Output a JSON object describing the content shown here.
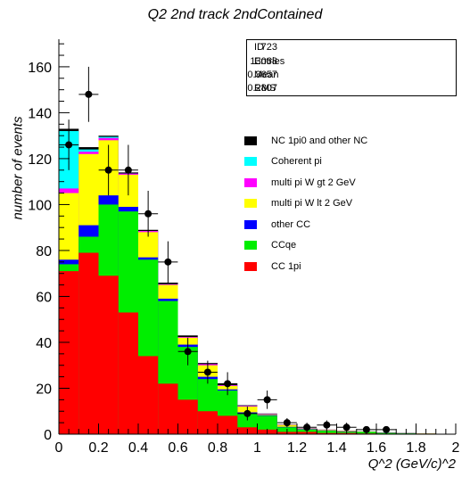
{
  "chart_data": {
    "type": "bar",
    "title": "Q2 2nd track 2ndContained",
    "xlabel": "Q^2 (GeV/c)^2",
    "ylabel": "number of events",
    "xlim": [
      0,
      2
    ],
    "ylim": [
      0,
      172
    ],
    "bin_edges": [
      0,
      0.1,
      0.2,
      0.3,
      0.4,
      0.5,
      0.6,
      0.7,
      0.8,
      0.9,
      1.0,
      1.1,
      1.2,
      1.3,
      1.4,
      1.5,
      1.6,
      1.7,
      1.8,
      1.9,
      2.0
    ],
    "x_ticks": [
      0,
      0.2,
      0.4,
      0.6,
      0.8,
      1,
      1.2,
      1.4,
      1.6,
      1.8,
      2
    ],
    "x_tick_labels": [
      "0",
      "0.2",
      "0.4",
      "0.6",
      "0.8",
      "1",
      "1.2",
      "1.4",
      "1.6",
      "1.8",
      "2"
    ],
    "y_ticks": [
      0,
      20,
      40,
      60,
      80,
      100,
      120,
      140,
      160
    ],
    "stacked_cumulative": [
      {
        "name": "CC 1pi",
        "color": "#ff0000",
        "values": [
          71,
          79,
          69,
          53,
          34,
          22,
          15,
          10,
          8,
          3,
          2,
          1,
          1,
          0.5,
          0.5,
          0.3,
          0.2,
          0.1,
          0.1,
          0
        ]
      },
      {
        "name": "CCqe",
        "color": "#00ee00",
        "values": [
          74,
          86,
          100,
          97,
          76,
          58,
          38,
          24,
          19,
          9,
          8,
          3,
          2,
          1.5,
          1,
          1,
          0.5,
          0.3,
          0.2,
          0.1
        ]
      },
      {
        "name": "other CC",
        "color": "#0000ff",
        "values": [
          76,
          91,
          104,
          99,
          77,
          59,
          39,
          25,
          19.5,
          9.5,
          8.3,
          3.2,
          2.2,
          1.6,
          1.1,
          1,
          0.6,
          0.3,
          0.2,
          0.1
        ]
      },
      {
        "name": "multi pi W lt 2 GeV",
        "color": "#ffff00",
        "values": [
          105,
          122,
          128,
          113,
          88,
          65,
          42,
          30,
          21,
          12,
          8.6,
          4,
          2.4,
          1.8,
          1.3,
          1.1,
          0.7,
          0.4,
          0.3,
          0.1
        ]
      },
      {
        "name": "multi pi W gt 2 GeV",
        "color": "#ff00ff",
        "values": [
          107,
          123,
          129,
          113.5,
          88.5,
          65.3,
          42.3,
          30.5,
          21.3,
          12.3,
          8.8,
          4.1,
          2.5,
          1.9,
          1.4,
          1.1,
          0.7,
          0.4,
          0.3,
          0.1
        ]
      },
      {
        "name": "Coherent pi",
        "color": "#00ffff",
        "values": [
          132,
          124,
          129.5,
          113.5,
          88.5,
          65.3,
          42.3,
          30.5,
          21.3,
          12.3,
          8.8,
          4.1,
          2.5,
          1.9,
          1.4,
          1.1,
          0.7,
          0.4,
          0.3,
          0.1
        ]
      },
      {
        "name": "NC 1pi0 and other NC",
        "color": "#000000",
        "values": [
          133,
          125,
          130,
          114,
          89,
          66,
          43,
          31,
          22,
          12.6,
          9,
          4.2,
          2.6,
          2,
          1.5,
          1.2,
          0.8,
          0.5,
          0.35,
          0.15
        ]
      }
    ],
    "data_points": {
      "x": [
        0.05,
        0.15,
        0.25,
        0.35,
        0.45,
        0.55,
        0.65,
        0.75,
        0.85,
        0.95,
        1.05,
        1.15,
        1.25,
        1.35,
        1.45,
        1.55,
        1.65
      ],
      "y": [
        126,
        148,
        115,
        115,
        96,
        75,
        36,
        27,
        22,
        9,
        15,
        5,
        3,
        4,
        3,
        2,
        2
      ],
      "err": [
        11,
        12,
        11,
        11,
        10,
        9,
        6,
        5,
        5,
        3,
        4,
        2,
        2,
        2,
        2,
        1.4,
        1.4
      ]
    },
    "stats": {
      "rows": [
        {
          "label": "ID",
          "value": "723"
        },
        {
          "label": "Entries",
          "value": "13068"
        },
        {
          "label": "Mean",
          "value": "0.3657"
        },
        {
          "label": "RMS",
          "value": "0.2807"
        }
      ]
    },
    "legend_position": "right"
  }
}
